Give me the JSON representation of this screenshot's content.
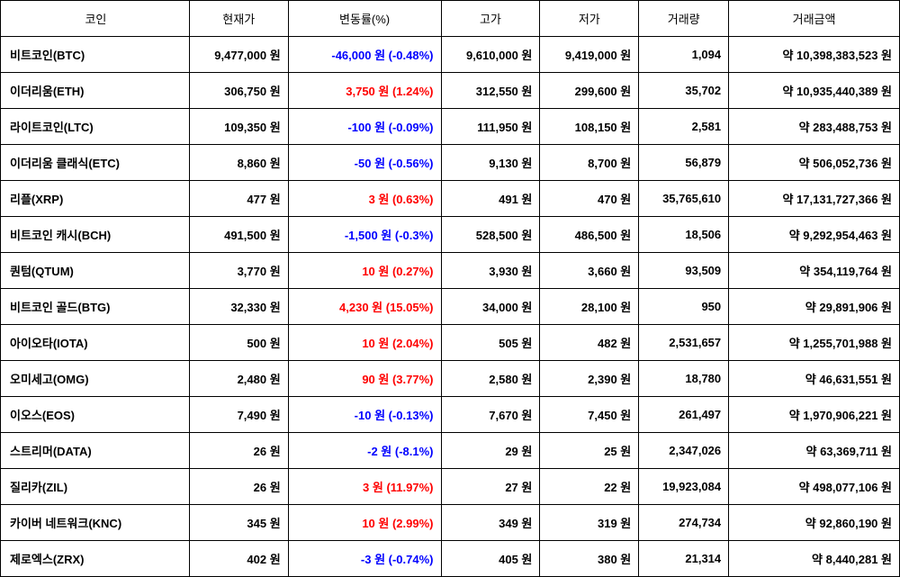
{
  "table": {
    "headers": {
      "coin": "코인",
      "price": "현재가",
      "change": "변동률(%)",
      "high": "고가",
      "low": "저가",
      "volume": "거래량",
      "amount": "거래금액"
    },
    "rows": [
      {
        "coin": "비트코인(BTC)",
        "price": "9,477,000 원",
        "change": "-46,000 원 (-0.48%)",
        "change_direction": "down",
        "high": "9,610,000 원",
        "low": "9,419,000 원",
        "volume": "1,094",
        "amount": "약 10,398,383,523 원"
      },
      {
        "coin": "이더리움(ETH)",
        "price": "306,750 원",
        "change": "3,750 원 (1.24%)",
        "change_direction": "up",
        "high": "312,550 원",
        "low": "299,600 원",
        "volume": "35,702",
        "amount": "약 10,935,440,389 원"
      },
      {
        "coin": "라이트코인(LTC)",
        "price": "109,350 원",
        "change": "-100 원 (-0.09%)",
        "change_direction": "down",
        "high": "111,950 원",
        "low": "108,150 원",
        "volume": "2,581",
        "amount": "약 283,488,753 원"
      },
      {
        "coin": "이더리움 클래식(ETC)",
        "price": "8,860 원",
        "change": "-50 원 (-0.56%)",
        "change_direction": "down",
        "high": "9,130 원",
        "low": "8,700 원",
        "volume": "56,879",
        "amount": "약 506,052,736 원"
      },
      {
        "coin": "리플(XRP)",
        "price": "477 원",
        "change": "3 원 (0.63%)",
        "change_direction": "up",
        "high": "491 원",
        "low": "470 원",
        "volume": "35,765,610",
        "amount": "약 17,131,727,366 원"
      },
      {
        "coin": "비트코인 캐시(BCH)",
        "price": "491,500 원",
        "change": "-1,500 원 (-0.3%)",
        "change_direction": "down",
        "high": "528,500 원",
        "low": "486,500 원",
        "volume": "18,506",
        "amount": "약 9,292,954,463 원"
      },
      {
        "coin": "퀀텀(QTUM)",
        "price": "3,770 원",
        "change": "10 원 (0.27%)",
        "change_direction": "up",
        "high": "3,930 원",
        "low": "3,660 원",
        "volume": "93,509",
        "amount": "약 354,119,764 원"
      },
      {
        "coin": "비트코인 골드(BTG)",
        "price": "32,330 원",
        "change": "4,230 원 (15.05%)",
        "change_direction": "up",
        "high": "34,000 원",
        "low": "28,100 원",
        "volume": "950",
        "amount": "약 29,891,906 원"
      },
      {
        "coin": "아이오타(IOTA)",
        "price": "500 원",
        "change": "10 원 (2.04%)",
        "change_direction": "up",
        "high": "505 원",
        "low": "482 원",
        "volume": "2,531,657",
        "amount": "약 1,255,701,988 원"
      },
      {
        "coin": "오미세고(OMG)",
        "price": "2,480 원",
        "change": "90 원 (3.77%)",
        "change_direction": "up",
        "high": "2,580 원",
        "low": "2,390 원",
        "volume": "18,780",
        "amount": "약 46,631,551 원"
      },
      {
        "coin": "이오스(EOS)",
        "price": "7,490 원",
        "change": "-10 원 (-0.13%)",
        "change_direction": "down",
        "high": "7,670 원",
        "low": "7,450 원",
        "volume": "261,497",
        "amount": "약 1,970,906,221 원"
      },
      {
        "coin": "스트리머(DATA)",
        "price": "26 원",
        "change": "-2 원 (-8.1%)",
        "change_direction": "down",
        "high": "29 원",
        "low": "25 원",
        "volume": "2,347,026",
        "amount": "약 63,369,711 원"
      },
      {
        "coin": "질리카(ZIL)",
        "price": "26 원",
        "change": "3 원 (11.97%)",
        "change_direction": "up",
        "high": "27 원",
        "low": "22 원",
        "volume": "19,923,084",
        "amount": "약 498,077,106 원"
      },
      {
        "coin": "카이버 네트워크(KNC)",
        "price": "345 원",
        "change": "10 원 (2.99%)",
        "change_direction": "up",
        "high": "349 원",
        "low": "319 원",
        "volume": "274,734",
        "amount": "약 92,860,190 원"
      },
      {
        "coin": "제로엑스(ZRX)",
        "price": "402 원",
        "change": "-3 원 (-0.74%)",
        "change_direction": "down",
        "high": "405 원",
        "low": "380 원",
        "volume": "21,314",
        "amount": "약 8,440,281 원"
      }
    ]
  },
  "colors": {
    "up": "#ff0000",
    "down": "#0000ff",
    "border": "#000000",
    "background": "#ffffff"
  }
}
